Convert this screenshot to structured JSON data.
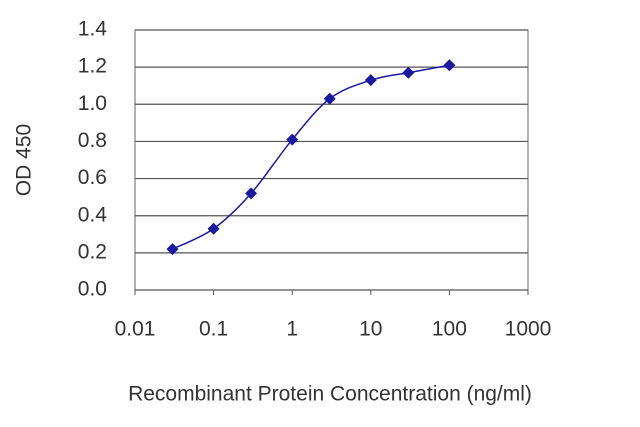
{
  "chart_data": {
    "type": "line",
    "x_scale": "log",
    "marker": "diamond",
    "y_label": "OD 450",
    "x_label": "Recombinant Protein Concentration (ng/ml)",
    "x": [
      0.03,
      0.1,
      0.3,
      1,
      3,
      10,
      30,
      100
    ],
    "values": [
      0.22,
      0.33,
      0.52,
      0.81,
      1.03,
      1.13,
      1.17,
      1.21
    ],
    "color": "#1a1aa0",
    "xlim": [
      0.01,
      1000
    ],
    "xticks": [
      0.01,
      0.1,
      1,
      10,
      100,
      1000
    ],
    "ylim": [
      0,
      1.4
    ],
    "yticks": [
      {
        "value": 0,
        "label": "0.0"
      },
      0.2,
      0.4,
      0.6,
      0.8,
      {
        "value": 1,
        "label": "1.0"
      },
      1.2,
      1.4
    ],
    "grid": true
  }
}
